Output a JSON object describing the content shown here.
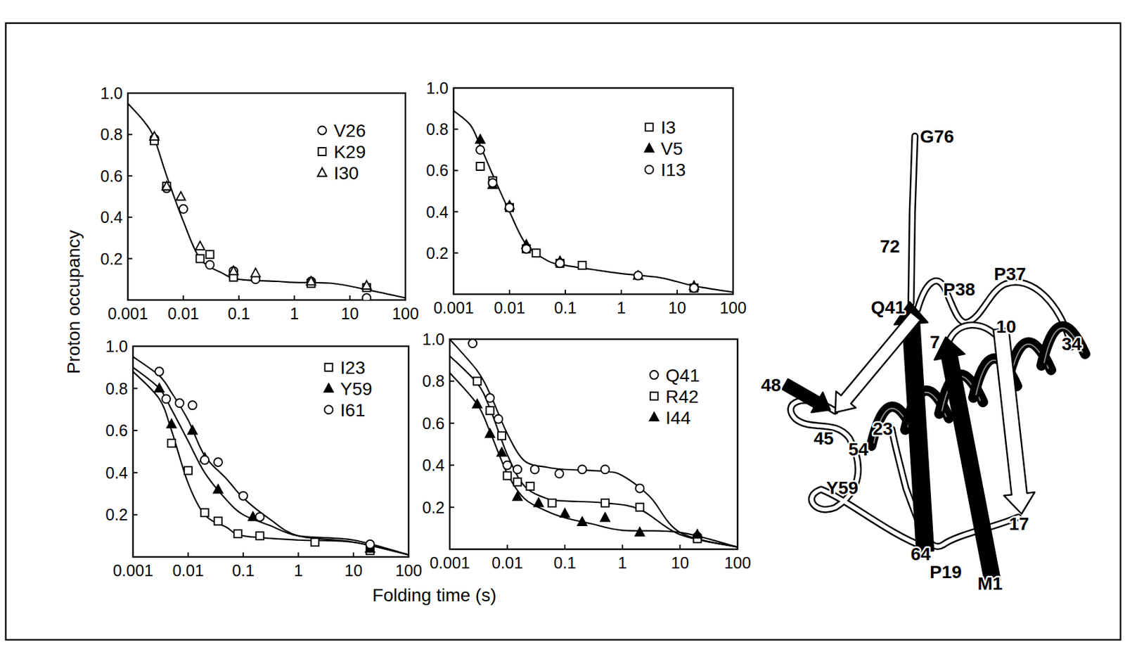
{
  "figure": {
    "y_label": "Proton occupancy",
    "x_label": "Folding time (s)"
  },
  "chart_data": [
    {
      "type": "scatter",
      "log": "x",
      "grid": false,
      "legend": "upper right",
      "xlim": [
        0.001,
        100
      ],
      "xticks": [
        0.001,
        0.01,
        0.1,
        1,
        10,
        100
      ],
      "ylim": [
        0,
        1
      ],
      "yticks": [
        0.2,
        0.4,
        0.6,
        0.8,
        {
          "value": 1,
          "label": "1.0"
        }
      ],
      "series": [
        {
          "name": "V26",
          "color": "#000000",
          "marker": "open-circle",
          "x": [
            0.003,
            0.005,
            0.01,
            0.03,
            0.08,
            0.2,
            2,
            20
          ],
          "values": [
            0.78,
            0.54,
            0.44,
            0.17,
            0.14,
            0.1,
            0.09,
            0.01
          ]
        },
        {
          "name": "K29",
          "color": "#000000",
          "marker": "open-square",
          "x": [
            0.003,
            0.005,
            0.02,
            0.03,
            0.08,
            2,
            20
          ],
          "values": [
            0.77,
            0.55,
            0.2,
            0.22,
            0.11,
            0.08,
            0.06
          ]
        },
        {
          "name": "I30",
          "color": "#000000",
          "marker": "open-triangle",
          "x": [
            0.003,
            0.005,
            0.009,
            0.02,
            0.08,
            0.2,
            2,
            20
          ],
          "values": [
            0.79,
            0.55,
            0.5,
            0.26,
            0.14,
            0.13,
            0.09,
            0.07
          ]
        },
        {
          "type": "line",
          "color": "#000000",
          "line_style": "solid",
          "x": [
            0.001,
            0.002,
            0.003,
            0.005,
            0.01,
            0.02,
            0.05,
            0.1,
            0.5,
            1,
            5,
            20,
            100
          ],
          "values": [
            0.95,
            0.86,
            0.78,
            0.6,
            0.38,
            0.2,
            0.13,
            0.1,
            0.09,
            0.085,
            0.08,
            0.05,
            0.01
          ]
        }
      ]
    },
    {
      "type": "scatter",
      "log": "x",
      "grid": false,
      "legend": "upper right",
      "xlim": [
        0.001,
        100
      ],
      "xticks": [
        0.001,
        0.01,
        0.1,
        1,
        10,
        100
      ],
      "ylim": [
        0,
        1
      ],
      "yticks": [
        0.2,
        0.4,
        0.6,
        0.8,
        {
          "value": 1,
          "label": "1.0"
        }
      ],
      "series": [
        {
          "name": "I3",
          "color": "#000000",
          "marker": "open-square",
          "x": [
            0.003,
            0.005,
            0.01,
            0.02,
            0.03,
            0.08,
            0.2,
            20
          ],
          "values": [
            0.62,
            0.55,
            0.42,
            0.22,
            0.2,
            0.15,
            0.14,
            0.03
          ]
        },
        {
          "name": "V5",
          "color": "#000000",
          "marker": "filled-triangle",
          "x": [
            0.003,
            0.005,
            0.01,
            0.02,
            0.08,
            2,
            20
          ],
          "values": [
            0.75,
            0.53,
            0.43,
            0.24,
            0.16,
            0.09,
            0.04
          ]
        },
        {
          "name": "I13",
          "color": "#000000",
          "marker": "open-circle",
          "x": [
            0.003,
            0.005,
            0.01,
            0.02,
            0.08,
            2,
            20
          ],
          "values": [
            0.7,
            0.54,
            0.42,
            0.22,
            0.15,
            0.09,
            0.03
          ]
        },
        {
          "type": "line",
          "color": "#000000",
          "line_style": "solid",
          "x": [
            0.001,
            0.002,
            0.003,
            0.005,
            0.01,
            0.02,
            0.05,
            0.1,
            0.3,
            1,
            5,
            20,
            100
          ],
          "values": [
            0.89,
            0.82,
            0.72,
            0.58,
            0.4,
            0.24,
            0.16,
            0.14,
            0.12,
            0.1,
            0.08,
            0.04,
            0.01
          ]
        }
      ]
    },
    {
      "type": "scatter",
      "log": "x",
      "grid": false,
      "legend": "upper right",
      "xlim": [
        0.001,
        100
      ],
      "xticks": [
        0.001,
        0.01,
        0.1,
        1,
        10,
        100
      ],
      "ylim": [
        0,
        1
      ],
      "yticks": [
        0.2,
        0.4,
        0.6,
        0.8,
        {
          "value": 1,
          "label": "1.0"
        }
      ],
      "series": [
        {
          "name": "I23",
          "color": "#000000",
          "marker": "open-square",
          "x": [
            0.005,
            0.01,
            0.02,
            0.035,
            0.08,
            0.2,
            2,
            20
          ],
          "values": [
            0.54,
            0.41,
            0.21,
            0.17,
            0.11,
            0.1,
            0.07,
            0.03
          ]
        },
        {
          "name": "Y59",
          "color": "#000000",
          "marker": "filled-triangle",
          "x": [
            0.003,
            0.005,
            0.012,
            0.02,
            0.035,
            0.15,
            20
          ],
          "values": [
            0.8,
            0.63,
            0.6,
            0.47,
            0.32,
            0.19,
            0.04
          ]
        },
        {
          "name": "I61",
          "color": "#000000",
          "marker": "open-circle",
          "x": [
            0.003,
            0.004,
            0.007,
            0.012,
            0.02,
            0.035,
            0.1,
            0.2,
            20
          ],
          "values": [
            0.88,
            0.75,
            0.73,
            0.72,
            0.46,
            0.45,
            0.29,
            0.19,
            0.06
          ]
        },
        {
          "type": "line",
          "color": "#000000",
          "line_style": "solid",
          "x": [
            0.001,
            0.003,
            0.005,
            0.01,
            0.02,
            0.05,
            0.1,
            1,
            10,
            100
          ],
          "values": [
            0.88,
            0.75,
            0.6,
            0.35,
            0.2,
            0.14,
            0.1,
            0.08,
            0.07,
            0.01
          ]
        },
        {
          "type": "line",
          "color": "#000000",
          "line_style": "solid",
          "x": [
            0.001,
            0.003,
            0.005,
            0.01,
            0.02,
            0.05,
            0.1,
            0.3,
            1,
            10,
            100
          ],
          "values": [
            0.9,
            0.8,
            0.7,
            0.55,
            0.4,
            0.27,
            0.2,
            0.15,
            0.1,
            0.08,
            0.01
          ]
        },
        {
          "type": "line",
          "color": "#000000",
          "line_style": "solid",
          "x": [
            0.001,
            0.003,
            0.005,
            0.01,
            0.02,
            0.05,
            0.1,
            0.3,
            1,
            10,
            100
          ],
          "values": [
            0.95,
            0.86,
            0.78,
            0.65,
            0.48,
            0.37,
            0.28,
            0.18,
            0.1,
            0.07,
            0.01
          ]
        }
      ]
    },
    {
      "type": "scatter",
      "log": "x",
      "grid": false,
      "legend": "upper right",
      "xlim": [
        0.001,
        100
      ],
      "xticks": [
        0.001,
        0.01,
        0.1,
        1,
        10,
        100
      ],
      "ylim": [
        0,
        1
      ],
      "yticks": [
        0.2,
        0.4,
        0.6,
        0.8,
        {
          "value": 1,
          "label": "1.0"
        }
      ],
      "series": [
        {
          "name": "Q41",
          "color": "#000000",
          "marker": "open-circle",
          "x": [
            0.0025,
            0.005,
            0.007,
            0.01,
            0.015,
            0.03,
            0.08,
            0.2,
            0.5,
            2,
            20
          ],
          "values": [
            0.98,
            0.72,
            0.62,
            0.4,
            0.38,
            0.38,
            0.36,
            0.38,
            0.38,
            0.29,
            0.06
          ]
        },
        {
          "name": "R42",
          "color": "#000000",
          "marker": "open-square",
          "x": [
            0.003,
            0.005,
            0.008,
            0.01,
            0.015,
            0.025,
            0.06,
            0.5,
            2,
            20
          ],
          "values": [
            0.8,
            0.66,
            0.54,
            0.35,
            0.32,
            0.3,
            0.22,
            0.22,
            0.2,
            0.05
          ]
        },
        {
          "name": "I44",
          "color": "#000000",
          "marker": "filled-triangle",
          "x": [
            0.003,
            0.005,
            0.008,
            0.015,
            0.035,
            0.1,
            0.2,
            0.5,
            2,
            20
          ],
          "values": [
            0.69,
            0.55,
            0.46,
            0.25,
            0.22,
            0.17,
            0.13,
            0.15,
            0.08,
            0.07
          ]
        },
        {
          "type": "line",
          "color": "#000000",
          "line_style": "solid",
          "x": [
            0.001,
            0.003,
            0.005,
            0.01,
            0.02,
            0.05,
            0.1,
            0.5,
            1,
            3,
            10,
            100
          ],
          "values": [
            1,
            0.85,
            0.74,
            0.55,
            0.42,
            0.39,
            0.38,
            0.37,
            0.35,
            0.25,
            0.08,
            0.01
          ]
        },
        {
          "type": "line",
          "color": "#000000",
          "line_style": "solid",
          "x": [
            0.001,
            0.003,
            0.005,
            0.01,
            0.02,
            0.05,
            0.1,
            0.5,
            2,
            10,
            100
          ],
          "values": [
            0.92,
            0.79,
            0.67,
            0.45,
            0.3,
            0.24,
            0.23,
            0.22,
            0.19,
            0.07,
            0.01
          ]
        },
        {
          "type": "line",
          "color": "#000000",
          "line_style": "solid",
          "x": [
            0.001,
            0.003,
            0.005,
            0.01,
            0.02,
            0.05,
            0.1,
            0.3,
            1,
            10,
            100
          ],
          "values": [
            0.84,
            0.69,
            0.56,
            0.36,
            0.24,
            0.18,
            0.15,
            0.12,
            0.09,
            0.08,
            0.01
          ]
        }
      ]
    }
  ],
  "diagram": {
    "labels": [
      "G76",
      "72",
      "Q41",
      "P38",
      "P37",
      "7",
      "10",
      "34",
      "48",
      "45",
      "54",
      "23",
      "Y59",
      "64",
      "P19",
      "M1",
      "17"
    ]
  }
}
